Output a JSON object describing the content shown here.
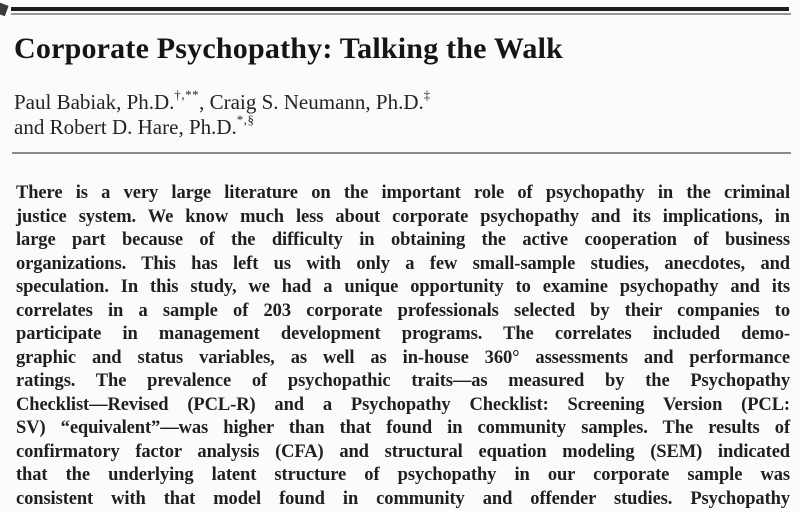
{
  "article": {
    "title": "Corporate Psychopathy: Talking the Walk",
    "authors": {
      "line1": {
        "name1": "Paul Babiak, Ph.D.",
        "sup1": "†,**",
        "separator": ", ",
        "name2": "Craig S. Neumann, Ph.D.",
        "sup2": "‡"
      },
      "line2": {
        "name": "and Robert D. Hare, Ph.D.",
        "sup": "*,§"
      }
    },
    "abstract_lines": [
      "There is a very large literature on the important role of psychopathy in the criminal",
      "justice system. We know much less about corporate psychopathy and its implications, in",
      "large part because of the difficulty in obtaining the active cooperation of business",
      "organizations. This has left us with only a few small-sample studies, anecdotes, and",
      "speculation. In this study, we had a unique opportunity to examine psychopathy and its",
      "correlates in a sample of 203 corporate professionals selected by their companies to",
      "participate in management development programs. The correlates included demo-",
      "graphic and status variables, as well as in-house 360° assessments and performance",
      "ratings. The prevalence of psychopathic traits—as measured by the Psychopathy",
      "Checklist—Revised (PCL-R) and a Psychopathy Checklist: Screening Version (PCL:",
      "SV) “equivalent”—was higher than that found in community samples. The results of",
      "confirmatory factor analysis (CFA) and structural equation modeling (SEM) indicated",
      "that the underlying latent structure of psychopathy in our corporate sample was",
      "consistent with that model found in community and offender studies. Psychopathy"
    ]
  },
  "colors": {
    "text": "#1e1e1e",
    "rule_dark": "#1c1c1c",
    "rule_gray": "#969696",
    "background": "#fbfbfb"
  }
}
